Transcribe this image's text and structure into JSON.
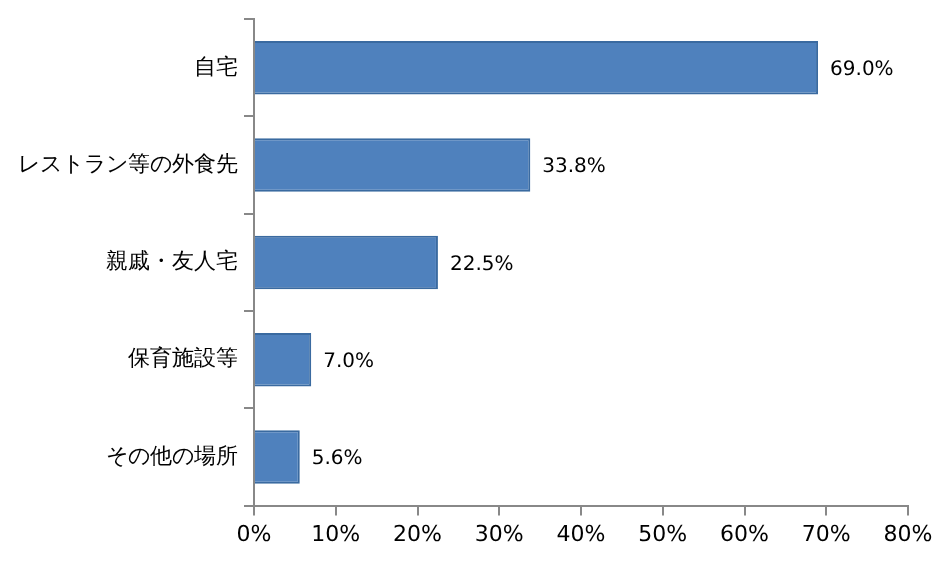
{
  "chart_data": {
    "type": "bar",
    "orientation": "horizontal",
    "categories": [
      "自宅",
      "レストラン等の外食先",
      "親戚・友人宅",
      "保育施設等",
      "その他の場所"
    ],
    "values": [
      69.0,
      33.8,
      22.5,
      7.0,
      5.6
    ],
    "value_labels": [
      "69.0%",
      "33.8%",
      "22.5%",
      "7.0%",
      "5.6%"
    ],
    "color": "#4f81bd",
    "xlim": [
      0,
      80
    ],
    "xticks": [
      {
        "value": 0,
        "label": "0%"
      },
      {
        "value": 10,
        "label": "10%"
      },
      {
        "value": 20,
        "label": "20%"
      },
      {
        "value": 30,
        "label": "30%"
      },
      {
        "value": 40,
        "label": "40%"
      },
      {
        "value": 50,
        "label": "50%"
      },
      {
        "value": 60,
        "label": "60%"
      },
      {
        "value": 70,
        "label": "70%"
      },
      {
        "value": 80,
        "label": "80%"
      }
    ],
    "grid": false,
    "legend": false
  }
}
